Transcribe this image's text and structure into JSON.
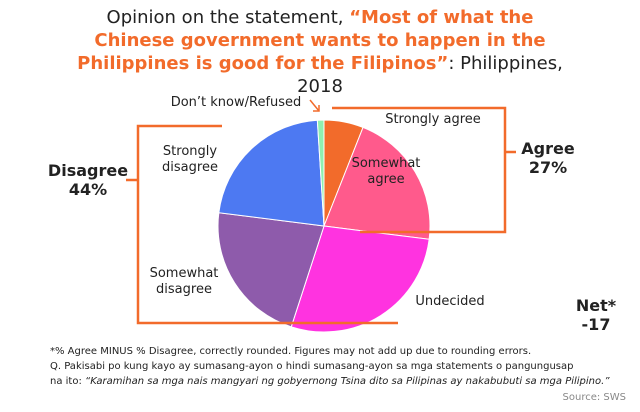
{
  "chart_data": {
    "type": "pie",
    "title": {
      "lead": "Opinion on the statement, ",
      "quote": "“Most of what the Chinese government wants to happen in the Philippines is good for the Filipinos”",
      "tail": ": Philippines, 2018"
    },
    "categories": [
      "Strongly agree",
      "Somewhat agree",
      "Undecided",
      "Somewhat disagree",
      "Strongly disagree",
      "Don’t know/Refused"
    ],
    "values": [
      6,
      21,
      28,
      22,
      22,
      1
    ],
    "colors": [
      "#f26b2b",
      "#ff5a8c",
      "#ff33e0",
      "#8e5bab",
      "#4d79f2",
      "#8ff0b0"
    ],
    "groups": {
      "names": [
        "Agree",
        "Disagree"
      ],
      "values": [
        27,
        44
      ],
      "value_labels": [
        "27%",
        "44%"
      ]
    },
    "net": {
      "label": "Net*",
      "value": -17
    },
    "footnotes": [
      "*% Agree MINUS % Disagree, correctly rounded. Figures may not add up due to rounding errors.",
      "Q. Pakisabi po kung kayo ay sumasang-ayon o hindi sumasang-ayon sa mga statements o pangungusap",
      "na ito: ",
      "“Karamihan sa mga nais mangyari ng gobyernong Tsina dito sa Pilipinas ay nakabubuti sa mga Pilipino.”"
    ],
    "source": "Source: SWS"
  }
}
